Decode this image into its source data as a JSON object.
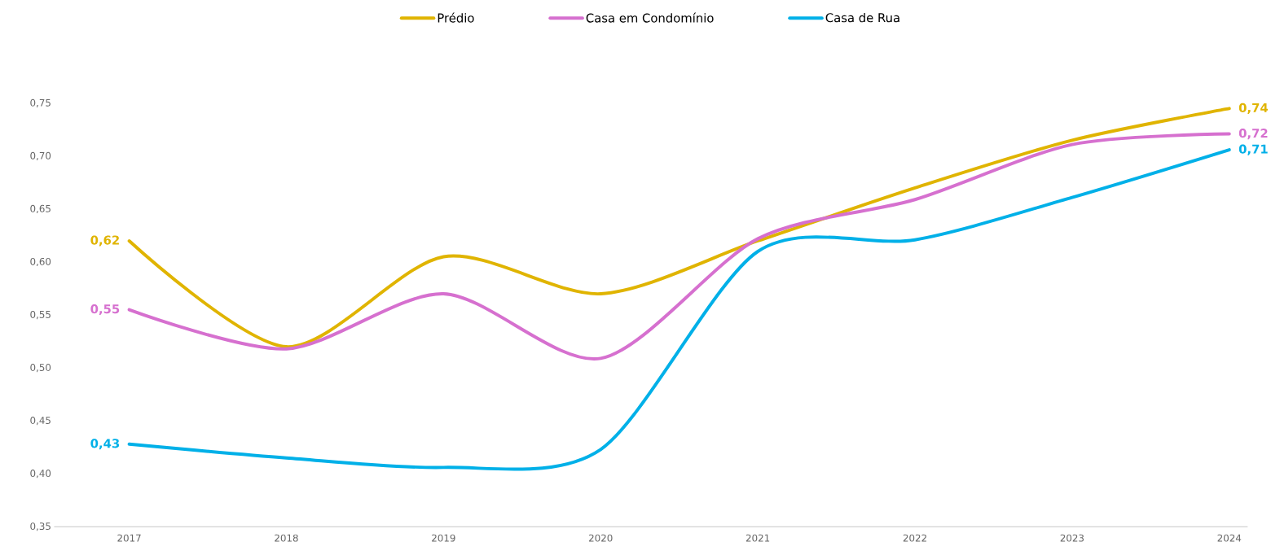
{
  "chart_data": {
    "type": "line",
    "categories": [
      "2017",
      "2018",
      "2019",
      "2020",
      "2021",
      "2022",
      "2023",
      "2024"
    ],
    "series": [
      {
        "name": "Prédio",
        "color": "#e0b400",
        "values": [
          0.62,
          0.52,
          0.605,
          0.57,
          0.62,
          0.67,
          0.715,
          0.745
        ],
        "value_labels": [
          "0,62",
          null,
          null,
          null,
          null,
          null,
          null,
          "0,74"
        ]
      },
      {
        "name": "Casa em Condomínio",
        "color": "#d670cf",
        "values": [
          0.555,
          0.518,
          0.57,
          0.509,
          0.622,
          0.659,
          0.711,
          0.721
        ],
        "value_labels": [
          "0,55",
          null,
          null,
          null,
          null,
          null,
          null,
          "0,72"
        ]
      },
      {
        "name": "Casa de Rua",
        "color": "#00b0e8",
        "values": [
          0.428,
          0.415,
          0.406,
          0.423,
          0.61,
          0.621,
          0.661,
          0.706
        ],
        "value_labels": [
          "0,43",
          null,
          null,
          null,
          null,
          null,
          null,
          "0,71"
        ]
      }
    ],
    "ylim": [
      0.35,
      0.75
    ],
    "yticks": [
      {
        "value": 0.35,
        "label": "0,35"
      },
      {
        "value": 0.4,
        "label": "0,40"
      },
      {
        "value": 0.45,
        "label": "0,45"
      },
      {
        "value": 0.5,
        "label": "0,50"
      },
      {
        "value": 0.55,
        "label": "0,55"
      },
      {
        "value": 0.6,
        "label": "0,60"
      },
      {
        "value": 0.65,
        "label": "0,65"
      },
      {
        "value": 0.7,
        "label": "0,70"
      },
      {
        "value": 0.75,
        "label": "0,75"
      }
    ],
    "legend": "top",
    "grid": false,
    "marker": "none",
    "line_style": "solid"
  }
}
